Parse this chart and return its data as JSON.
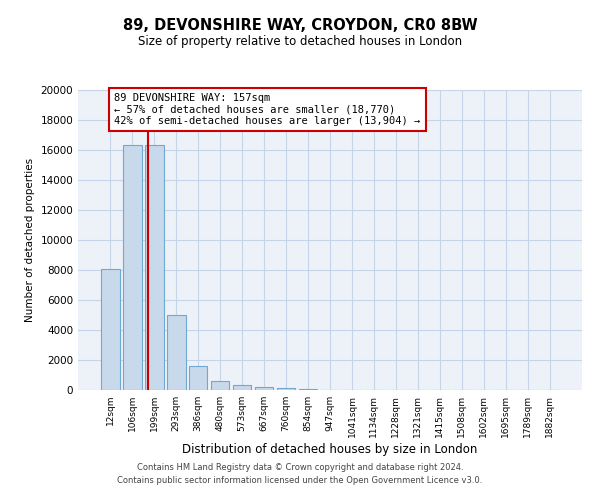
{
  "title_line1": "89, DEVONSHIRE WAY, CROYDON, CR0 8BW",
  "title_line2": "Size of property relative to detached houses in London",
  "xlabel": "Distribution of detached houses by size in London",
  "ylabel": "Number of detached properties",
  "categories": [
    "12sqm",
    "106sqm",
    "199sqm",
    "293sqm",
    "386sqm",
    "480sqm",
    "573sqm",
    "667sqm",
    "760sqm",
    "854sqm",
    "947sqm",
    "1041sqm",
    "1134sqm",
    "1228sqm",
    "1321sqm",
    "1415sqm",
    "1508sqm",
    "1602sqm",
    "1695sqm",
    "1789sqm",
    "1882sqm"
  ],
  "values": [
    8050,
    16350,
    16300,
    5000,
    1600,
    600,
    350,
    200,
    130,
    70,
    0,
    0,
    0,
    0,
    0,
    0,
    0,
    0,
    0,
    0,
    0
  ],
  "bar_color": "#c8d9eb",
  "bar_edge_color": "#6fa8d0",
  "property_line_x": 1.72,
  "property_line_color": "#cc0000",
  "annotation_text": "89 DEVONSHIRE WAY: 157sqm\n← 57% of detached houses are smaller (18,770)\n42% of semi-detached houses are larger (13,904) →",
  "annotation_box_color": "#cc0000",
  "ylim": [
    0,
    20000
  ],
  "yticks": [
    0,
    2000,
    4000,
    6000,
    8000,
    10000,
    12000,
    14000,
    16000,
    18000,
    20000
  ],
  "grid_color": "#c5d4e8",
  "background_color": "#edf2f8",
  "footer_line1": "Contains HM Land Registry data © Crown copyright and database right 2024.",
  "footer_line2": "Contains public sector information licensed under the Open Government Licence v3.0."
}
